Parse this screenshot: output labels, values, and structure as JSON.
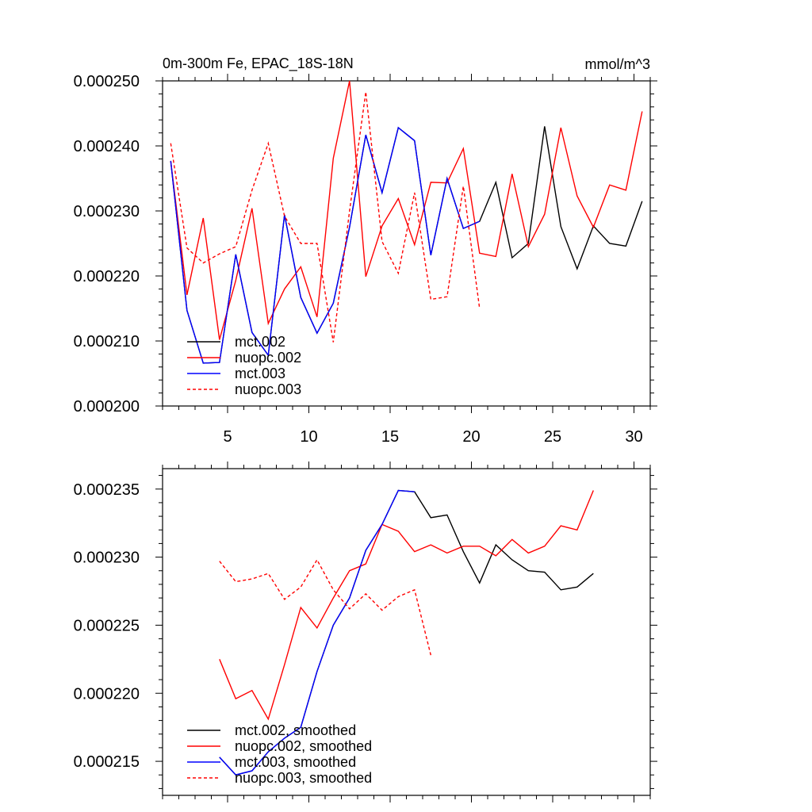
{
  "chart_data": [
    {
      "type": "line",
      "title": "0m-300m Fe, EPAC_18S-18N",
      "units": "mmol/m^3",
      "xlabel": "",
      "ylabel": "",
      "xlim": [
        1,
        31
      ],
      "ylim": [
        0.0002,
        0.00025
      ],
      "x_ticks": [
        5,
        10,
        15,
        20,
        25,
        30
      ],
      "x_tick_labels": [
        "5",
        "10",
        "15",
        "20",
        "25",
        "30"
      ],
      "y_ticks": [
        0.0002,
        0.00021,
        0.00022,
        0.00023,
        0.00024,
        0.00025
      ],
      "y_tick_labels": [
        "0.000200",
        "0.000210",
        "0.000220",
        "0.000230",
        "0.000240",
        "0.000250"
      ],
      "legend_position": "bottom-left",
      "series": [
        {
          "name": "mct.002",
          "color": "#000000",
          "dash": "solid",
          "x": [
            1.5,
            2.5,
            3.5,
            4.5,
            5.5,
            6.5,
            7.5,
            8.5,
            9.5,
            10.5,
            11.5,
            12.5,
            13.5,
            14.5,
            15.5,
            16.5,
            17.5,
            18.5,
            19.5,
            20.5,
            21.5,
            22.5,
            23.5,
            24.5,
            25.5,
            26.5,
            27.5,
            28.5,
            29.5,
            30.5
          ],
          "values": [
            0.0002377,
            0.0002147,
            0.0002066,
            0.0002067,
            0.0002233,
            0.0002113,
            0.0002078,
            0.0002294,
            0.0002167,
            0.0002112,
            0.0002158,
            0.0002275,
            0.0002417,
            0.0002328,
            0.0002428,
            0.0002408,
            0.0002232,
            0.000235,
            0.0002273,
            0.0002284,
            0.0002344,
            0.0002228,
            0.000225,
            0.000243,
            0.0002276,
            0.0002211,
            0.0002277,
            0.000225,
            0.0002246,
            0.0002315
          ]
        },
        {
          "name": "nuopc.002",
          "color": "#ff0000",
          "dash": "solid",
          "x": [
            1.5,
            2.5,
            3.5,
            4.5,
            5.5,
            6.5,
            7.5,
            8.5,
            9.5,
            10.5,
            11.5,
            12.5,
            13.5,
            14.5,
            15.5,
            16.5,
            17.5,
            18.5,
            19.5,
            20.5,
            21.5,
            22.5,
            23.5,
            24.5,
            25.5,
            26.5,
            27.5,
            28.5,
            29.5,
            30.5
          ],
          "values": [
            0.0002377,
            0.0002171,
            0.0002289,
            0.0002102,
            0.0002193,
            0.0002304,
            0.0002127,
            0.000218,
            0.0002214,
            0.0002137,
            0.0002381,
            0.00025,
            0.0002199,
            0.0002277,
            0.0002319,
            0.0002248,
            0.0002344,
            0.0002343,
            0.0002396,
            0.0002235,
            0.000223,
            0.0002357,
            0.0002245,
            0.0002295,
            0.0002428,
            0.0002323,
            0.0002275,
            0.000234,
            0.0002332,
            0.0002453
          ]
        },
        {
          "name": "mct.003",
          "color": "#0000ff",
          "dash": "solid",
          "x": [
            1.5,
            2.5,
            3.5,
            4.5,
            5.5,
            6.5,
            7.5,
            8.5,
            9.5,
            10.5,
            11.5,
            12.5,
            13.5,
            14.5,
            15.5,
            16.5,
            17.5,
            18.5,
            19.5,
            20.5
          ],
          "values": [
            0.0002377,
            0.0002147,
            0.0002066,
            0.0002067,
            0.0002233,
            0.0002113,
            0.0002078,
            0.0002294,
            0.0002167,
            0.0002112,
            0.0002158,
            0.0002275,
            0.0002417,
            0.0002328,
            0.0002428,
            0.0002408,
            0.0002232,
            0.000235,
            0.0002273,
            0.0002284
          ]
        },
        {
          "name": "nuopc.003",
          "color": "#ff0000",
          "dash": "dashed",
          "x": [
            1.5,
            2.5,
            3.5,
            4.5,
            5.5,
            6.5,
            7.5,
            8.5,
            9.5,
            10.5,
            11.5,
            12.5,
            13.5,
            14.5,
            15.5,
            16.5,
            17.5,
            18.5,
            19.5,
            20.5
          ],
          "values": [
            0.0002404,
            0.0002243,
            0.000222,
            0.0002234,
            0.0002245,
            0.0002332,
            0.0002404,
            0.0002292,
            0.000225,
            0.000225,
            0.0002098,
            0.00023,
            0.0002483,
            0.0002253,
            0.0002204,
            0.0002328,
            0.0002164,
            0.0002168,
            0.0002338,
            0.000215
          ]
        }
      ]
    },
    {
      "type": "line",
      "title": "",
      "xlabel": "",
      "ylabel": "",
      "xlim": [
        1,
        31
      ],
      "ylim": [
        0.0002125,
        0.0002365
      ],
      "x_ticks": [
        5,
        10,
        15,
        20,
        25,
        30
      ],
      "x_tick_labels": [],
      "y_ticks": [
        0.000215,
        0.00022,
        0.000225,
        0.00023,
        0.000235
      ],
      "y_tick_labels": [
        "0.000215",
        "0.000220",
        "0.000225",
        "0.000230",
        "0.000235"
      ],
      "legend_position": "bottom-left",
      "series": [
        {
          "name": "mct.002, smoothed",
          "color": "#000000",
          "dash": "solid",
          "x": [
            4.5,
            5.5,
            6.5,
            7.5,
            8.5,
            9.5,
            10.5,
            11.5,
            12.5,
            13.5,
            14.5,
            15.5,
            16.5,
            17.5,
            18.5,
            19.5,
            20.5,
            21.5,
            22.5,
            23.5,
            24.5,
            25.5,
            26.5,
            27.5
          ],
          "values": [
            0.0002153,
            0.000214,
            0.0002143,
            0.0002157,
            0.0002167,
            0.0002175,
            0.0002216,
            0.000225,
            0.000227,
            0.0002305,
            0.0002324,
            0.0002349,
            0.0002348,
            0.0002329,
            0.0002331,
            0.0002304,
            0.0002281,
            0.0002309,
            0.0002298,
            0.000229,
            0.0002289,
            0.0002276,
            0.0002278,
            0.0002288
          ]
        },
        {
          "name": "nuopc.002, smoothed",
          "color": "#ff0000",
          "dash": "solid",
          "x": [
            4.5,
            5.5,
            6.5,
            7.5,
            8.5,
            9.5,
            10.5,
            11.5,
            12.5,
            13.5,
            14.5,
            15.5,
            16.5,
            17.5,
            18.5,
            19.5,
            20.5,
            21.5,
            22.5,
            23.5,
            24.5,
            25.5,
            26.5,
            27.5
          ],
          "values": [
            0.0002225,
            0.0002196,
            0.0002202,
            0.0002181,
            0.0002221,
            0.0002263,
            0.0002248,
            0.000227,
            0.000229,
            0.0002295,
            0.0002324,
            0.0002319,
            0.0002304,
            0.0002309,
            0.0002303,
            0.0002308,
            0.0002308,
            0.0002301,
            0.0002313,
            0.0002303,
            0.0002308,
            0.0002323,
            0.000232,
            0.0002349
          ]
        },
        {
          "name": "mct.003, smoothed",
          "color": "#0000ff",
          "dash": "solid",
          "x": [
            4.5,
            5.5,
            6.5,
            7.5,
            8.5,
            9.5,
            10.5,
            11.5,
            12.5,
            13.5,
            14.5,
            15.5,
            16.5
          ],
          "values": [
            0.0002153,
            0.000214,
            0.0002143,
            0.0002157,
            0.0002167,
            0.0002175,
            0.0002216,
            0.000225,
            0.000227,
            0.0002305,
            0.0002324,
            0.0002349,
            0.0002348
          ]
        },
        {
          "name": "nuopc.003, smoothed",
          "color": "#ff0000",
          "dash": "dashed",
          "x": [
            4.5,
            5.5,
            6.5,
            7.5,
            8.5,
            9.5,
            10.5,
            11.5,
            12.5,
            13.5,
            14.5,
            15.5,
            16.5,
            17.5
          ],
          "values": [
            0.0002297,
            0.0002282,
            0.0002284,
            0.0002288,
            0.0002269,
            0.0002278,
            0.0002298,
            0.0002276,
            0.0002262,
            0.0002273,
            0.0002261,
            0.0002271,
            0.0002276,
            0.0002228
          ]
        }
      ]
    }
  ]
}
